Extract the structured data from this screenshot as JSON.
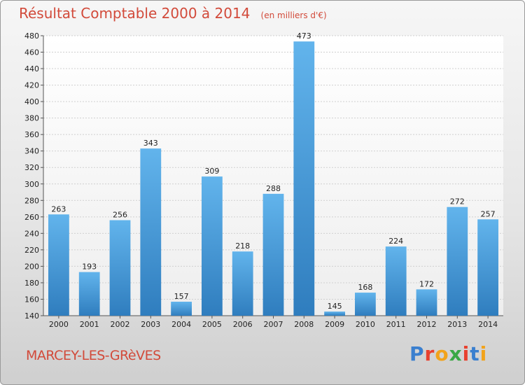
{
  "chart_data": {
    "type": "bar",
    "title": "Résultat Comptable 2000 à 2014",
    "unit_label": "(en milliers d'€)",
    "categories": [
      "2000",
      "2001",
      "2002",
      "2003",
      "2004",
      "2005",
      "2006",
      "2007",
      "2008",
      "2009",
      "2010",
      "2011",
      "2012",
      "2013",
      "2014"
    ],
    "values": [
      263,
      193,
      256,
      343,
      157,
      309,
      218,
      288,
      473,
      145,
      168,
      224,
      172,
      272,
      257
    ],
    "ylim": [
      140,
      480
    ],
    "yticks": [
      140,
      160,
      180,
      200,
      220,
      240,
      260,
      280,
      300,
      320,
      340,
      360,
      380,
      400,
      420,
      440,
      460,
      480
    ],
    "xlabel": "",
    "ylabel": "",
    "grid": true,
    "bar_color_light": "#62b4ec",
    "bar_color_dark": "#2f7dbe"
  },
  "footer": {
    "commune": "MARCEY-LES-GRèVES",
    "logo": {
      "letters": [
        "P",
        "r",
        "o",
        "x",
        "i",
        "t",
        "i"
      ],
      "colors": [
        "#3a7fcf",
        "#e8402e",
        "#f2a31b",
        "#3aa845",
        "#e8402e",
        "#3a7fcf",
        "#f2a31b"
      ]
    }
  }
}
